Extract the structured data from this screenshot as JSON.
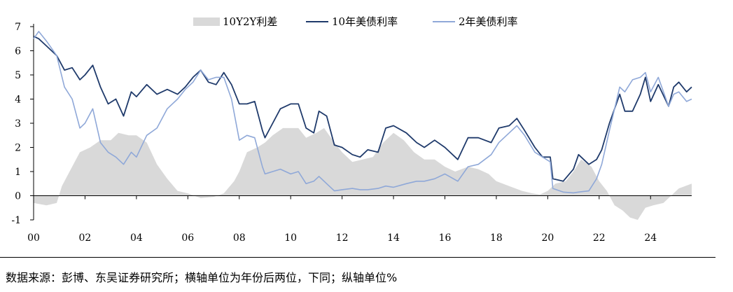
{
  "chart_data": {
    "type": "line",
    "title": "",
    "xlabel": "",
    "ylabel": "",
    "xlim": [
      2000,
      2025.6
    ],
    "ylim": [
      -1,
      7
    ],
    "x_ticks": [
      {
        "value": 2000,
        "label": "00"
      },
      {
        "value": 2002,
        "label": "02"
      },
      {
        "value": 2004,
        "label": "04"
      },
      {
        "value": 2006,
        "label": "06"
      },
      {
        "value": 2008,
        "label": "08"
      },
      {
        "value": 2010,
        "label": "10"
      },
      {
        "value": 2012,
        "label": "12"
      },
      {
        "value": 2014,
        "label": "14"
      },
      {
        "value": 2016,
        "label": "16"
      },
      {
        "value": 2018,
        "label": "18"
      },
      {
        "value": 2020,
        "label": "20"
      },
      {
        "value": 2022,
        "label": "22"
      },
      {
        "value": 2024,
        "label": "24"
      }
    ],
    "y_ticks": [
      {
        "value": 7,
        "label": "7"
      },
      {
        "value": 6,
        "label": "6"
      },
      {
        "value": 5,
        "label": "5"
      },
      {
        "value": 4,
        "label": "4"
      },
      {
        "value": 3,
        "label": "3"
      },
      {
        "value": 2,
        "label": "2"
      },
      {
        "value": 1,
        "label": "1"
      },
      {
        "value": 0,
        "label": "0"
      },
      {
        "value": -1,
        "label": "-1"
      }
    ],
    "legend_position": "top",
    "series": [
      {
        "name": "10Y2Y利差",
        "kind": "area",
        "color": "#d9d9d9",
        "points": [
          [
            2000.0,
            -0.3
          ],
          [
            2000.5,
            -0.4
          ],
          [
            2000.9,
            -0.3
          ],
          [
            2001.1,
            0.4
          ],
          [
            2001.4,
            1.0
          ],
          [
            2001.8,
            1.8
          ],
          [
            2002.2,
            2.0
          ],
          [
            2002.6,
            2.3
          ],
          [
            2003.0,
            2.3
          ],
          [
            2003.3,
            2.6
          ],
          [
            2003.7,
            2.5
          ],
          [
            2004.0,
            2.5
          ],
          [
            2004.4,
            2.2
          ],
          [
            2004.8,
            1.3
          ],
          [
            2005.2,
            0.7
          ],
          [
            2005.6,
            0.2
          ],
          [
            2006.0,
            0.1
          ],
          [
            2006.5,
            -0.1
          ],
          [
            2007.0,
            -0.05
          ],
          [
            2007.4,
            0.1
          ],
          [
            2007.8,
            0.6
          ],
          [
            2008.0,
            1.0
          ],
          [
            2008.3,
            1.8
          ],
          [
            2008.7,
            2.0
          ],
          [
            2009.0,
            2.2
          ],
          [
            2009.3,
            2.5
          ],
          [
            2009.7,
            2.8
          ],
          [
            2010.0,
            2.8
          ],
          [
            2010.3,
            2.8
          ],
          [
            2010.6,
            2.4
          ],
          [
            2011.0,
            2.6
          ],
          [
            2011.3,
            2.8
          ],
          [
            2011.7,
            2.2
          ],
          [
            2012.0,
            1.8
          ],
          [
            2012.4,
            1.4
          ],
          [
            2012.8,
            1.5
          ],
          [
            2013.2,
            1.6
          ],
          [
            2013.6,
            2.2
          ],
          [
            2014.0,
            2.6
          ],
          [
            2014.4,
            2.3
          ],
          [
            2014.8,
            1.8
          ],
          [
            2015.2,
            1.5
          ],
          [
            2015.6,
            1.5
          ],
          [
            2016.0,
            1.2
          ],
          [
            2016.4,
            1.0
          ],
          [
            2016.9,
            1.2
          ],
          [
            2017.3,
            1.1
          ],
          [
            2017.7,
            0.9
          ],
          [
            2018.0,
            0.6
          ],
          [
            2018.5,
            0.4
          ],
          [
            2019.0,
            0.2
          ],
          [
            2019.4,
            0.1
          ],
          [
            2019.7,
            0.05
          ],
          [
            2020.0,
            0.2
          ],
          [
            2020.3,
            0.5
          ],
          [
            2020.7,
            0.6
          ],
          [
            2021.0,
            1.0
          ],
          [
            2021.3,
            1.5
          ],
          [
            2021.7,
            1.2
          ],
          [
            2022.0,
            0.6
          ],
          [
            2022.3,
            0.2
          ],
          [
            2022.6,
            -0.4
          ],
          [
            2022.9,
            -0.6
          ],
          [
            2023.2,
            -0.9
          ],
          [
            2023.5,
            -1.0
          ],
          [
            2023.8,
            -0.5
          ],
          [
            2024.1,
            -0.4
          ],
          [
            2024.5,
            -0.3
          ],
          [
            2024.8,
            0.0
          ],
          [
            2025.1,
            0.3
          ],
          [
            2025.6,
            0.5
          ]
        ]
      },
      {
        "name": "10年美债利率",
        "kind": "line",
        "color": "#1f3a6b",
        "points": [
          [
            2000.0,
            6.6
          ],
          [
            2000.2,
            6.5
          ],
          [
            2000.5,
            6.2
          ],
          [
            2000.9,
            5.8
          ],
          [
            2001.2,
            5.2
          ],
          [
            2001.5,
            5.3
          ],
          [
            2001.8,
            4.8
          ],
          [
            2002.0,
            5.0
          ],
          [
            2002.3,
            5.4
          ],
          [
            2002.6,
            4.5
          ],
          [
            2002.9,
            3.8
          ],
          [
            2003.2,
            4.0
          ],
          [
            2003.5,
            3.3
          ],
          [
            2003.8,
            4.3
          ],
          [
            2004.0,
            4.1
          ],
          [
            2004.4,
            4.6
          ],
          [
            2004.8,
            4.2
          ],
          [
            2005.2,
            4.4
          ],
          [
            2005.6,
            4.2
          ],
          [
            2005.9,
            4.5
          ],
          [
            2006.2,
            4.9
          ],
          [
            2006.5,
            5.2
          ],
          [
            2006.8,
            4.7
          ],
          [
            2007.1,
            4.6
          ],
          [
            2007.4,
            5.1
          ],
          [
            2007.7,
            4.6
          ],
          [
            2008.0,
            3.8
          ],
          [
            2008.3,
            3.8
          ],
          [
            2008.6,
            3.9
          ],
          [
            2008.9,
            2.7
          ],
          [
            2009.0,
            2.4
          ],
          [
            2009.3,
            3.0
          ],
          [
            2009.6,
            3.6
          ],
          [
            2010.0,
            3.8
          ],
          [
            2010.3,
            3.8
          ],
          [
            2010.6,
            2.8
          ],
          [
            2010.9,
            2.6
          ],
          [
            2011.1,
            3.5
          ],
          [
            2011.4,
            3.3
          ],
          [
            2011.7,
            2.1
          ],
          [
            2012.0,
            2.0
          ],
          [
            2012.4,
            1.7
          ],
          [
            2012.7,
            1.6
          ],
          [
            2013.0,
            1.9
          ],
          [
            2013.4,
            1.8
          ],
          [
            2013.7,
            2.8
          ],
          [
            2014.0,
            2.9
          ],
          [
            2014.5,
            2.6
          ],
          [
            2014.9,
            2.2
          ],
          [
            2015.2,
            2.0
          ],
          [
            2015.6,
            2.3
          ],
          [
            2016.0,
            2.0
          ],
          [
            2016.5,
            1.5
          ],
          [
            2016.9,
            2.4
          ],
          [
            2017.3,
            2.4
          ],
          [
            2017.8,
            2.2
          ],
          [
            2018.1,
            2.8
          ],
          [
            2018.5,
            2.9
          ],
          [
            2018.8,
            3.2
          ],
          [
            2019.1,
            2.7
          ],
          [
            2019.5,
            2.0
          ],
          [
            2019.8,
            1.6
          ],
          [
            2020.1,
            1.6
          ],
          [
            2020.2,
            0.7
          ],
          [
            2020.6,
            0.6
          ],
          [
            2021.0,
            1.1
          ],
          [
            2021.2,
            1.7
          ],
          [
            2021.6,
            1.3
          ],
          [
            2021.9,
            1.5
          ],
          [
            2022.1,
            1.9
          ],
          [
            2022.4,
            3.0
          ],
          [
            2022.8,
            4.2
          ],
          [
            2023.0,
            3.5
          ],
          [
            2023.3,
            3.5
          ],
          [
            2023.6,
            4.2
          ],
          [
            2023.8,
            4.9
          ],
          [
            2024.0,
            3.9
          ],
          [
            2024.3,
            4.6
          ],
          [
            2024.7,
            3.7
          ],
          [
            2024.9,
            4.5
          ],
          [
            2025.1,
            4.7
          ],
          [
            2025.4,
            4.3
          ],
          [
            2025.6,
            4.5
          ]
        ]
      },
      {
        "name": "2年美债利率",
        "kind": "line",
        "color": "#8fa8d8",
        "points": [
          [
            2000.0,
            6.5
          ],
          [
            2000.2,
            6.8
          ],
          [
            2000.5,
            6.4
          ],
          [
            2000.9,
            5.8
          ],
          [
            2001.2,
            4.5
          ],
          [
            2001.5,
            4.0
          ],
          [
            2001.8,
            2.8
          ],
          [
            2002.0,
            3.0
          ],
          [
            2002.3,
            3.6
          ],
          [
            2002.6,
            2.2
          ],
          [
            2002.9,
            1.8
          ],
          [
            2003.2,
            1.6
          ],
          [
            2003.5,
            1.3
          ],
          [
            2003.8,
            1.8
          ],
          [
            2004.0,
            1.6
          ],
          [
            2004.4,
            2.5
          ],
          [
            2004.8,
            2.8
          ],
          [
            2005.2,
            3.6
          ],
          [
            2005.6,
            4.0
          ],
          [
            2005.9,
            4.4
          ],
          [
            2006.2,
            4.7
          ],
          [
            2006.5,
            5.2
          ],
          [
            2006.8,
            4.8
          ],
          [
            2007.1,
            4.9
          ],
          [
            2007.4,
            4.9
          ],
          [
            2007.7,
            4.0
          ],
          [
            2008.0,
            2.3
          ],
          [
            2008.3,
            2.5
          ],
          [
            2008.6,
            2.4
          ],
          [
            2008.9,
            1.2
          ],
          [
            2009.0,
            0.9
          ],
          [
            2009.3,
            1.0
          ],
          [
            2009.6,
            1.1
          ],
          [
            2010.0,
            0.9
          ],
          [
            2010.3,
            1.0
          ],
          [
            2010.6,
            0.5
          ],
          [
            2010.9,
            0.6
          ],
          [
            2011.1,
            0.8
          ],
          [
            2011.4,
            0.5
          ],
          [
            2011.7,
            0.2
          ],
          [
            2012.0,
            0.25
          ],
          [
            2012.4,
            0.3
          ],
          [
            2012.7,
            0.25
          ],
          [
            2013.0,
            0.25
          ],
          [
            2013.4,
            0.3
          ],
          [
            2013.7,
            0.4
          ],
          [
            2014.0,
            0.35
          ],
          [
            2014.5,
            0.5
          ],
          [
            2014.9,
            0.6
          ],
          [
            2015.2,
            0.6
          ],
          [
            2015.6,
            0.7
          ],
          [
            2016.0,
            0.9
          ],
          [
            2016.5,
            0.6
          ],
          [
            2016.9,
            1.2
          ],
          [
            2017.3,
            1.3
          ],
          [
            2017.8,
            1.7
          ],
          [
            2018.1,
            2.2
          ],
          [
            2018.5,
            2.6
          ],
          [
            2018.8,
            2.9
          ],
          [
            2019.1,
            2.5
          ],
          [
            2019.5,
            1.8
          ],
          [
            2019.8,
            1.6
          ],
          [
            2020.1,
            1.4
          ],
          [
            2020.2,
            0.3
          ],
          [
            2020.6,
            0.15
          ],
          [
            2021.0,
            0.12
          ],
          [
            2021.2,
            0.15
          ],
          [
            2021.6,
            0.2
          ],
          [
            2021.9,
            0.7
          ],
          [
            2022.1,
            1.3
          ],
          [
            2022.4,
            2.7
          ],
          [
            2022.8,
            4.5
          ],
          [
            2023.0,
            4.3
          ],
          [
            2023.3,
            4.8
          ],
          [
            2023.6,
            4.9
          ],
          [
            2023.8,
            5.1
          ],
          [
            2024.0,
            4.3
          ],
          [
            2024.3,
            4.9
          ],
          [
            2024.7,
            3.7
          ],
          [
            2024.9,
            4.2
          ],
          [
            2025.1,
            4.3
          ],
          [
            2025.4,
            3.9
          ],
          [
            2025.6,
            4.0
          ]
        ]
      }
    ]
  },
  "source_note": "数据来源：彭博、东吴证券研究所；横轴单位为年份后两位，下同；纵轴单位%"
}
